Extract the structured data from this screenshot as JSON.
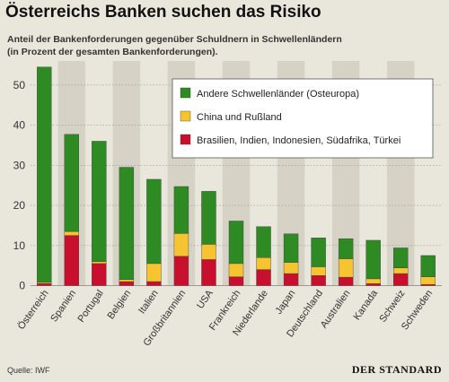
{
  "header": {
    "title": "Österreichs Banken suchen das Risiko",
    "subtitle_line1": "Anteil der Bankenforderungen gegenüber Schuldnern in Schwellenländern",
    "subtitle_line2": "(in Prozent der gesamten Bankenforderungen)."
  },
  "footer": {
    "source": "Quelle: IWF",
    "brand": "DER STANDARD"
  },
  "colors": {
    "background": "#e9e7dc",
    "stripe": "#d6d3c6",
    "green": "#2e8b23",
    "yellow": "#f7c431",
    "red": "#c8102e",
    "grid": "#9a988f"
  },
  "chart_data": {
    "type": "bar",
    "stacked": true,
    "categories": [
      "Österreich",
      "Spanien",
      "Portugal",
      "Belgien",
      "Italien",
      "Großbritannien",
      "USA",
      "Frankreich",
      "Niederlande",
      "Japan",
      "Deutschland",
      "Australien",
      "Kanada",
      "Schweiz",
      "Schweden"
    ],
    "series": [
      {
        "name": "Brasilien, Indien, Indonesien, Südafrika, Türkei",
        "color": "#c8102e",
        "values": [
          0.5,
          12.5,
          5.5,
          1,
          1,
          7.3,
          6.5,
          2.2,
          4,
          3,
          2.5,
          2.1,
          0.5,
          3,
          0.3
        ]
      },
      {
        "name": "China und Rußland",
        "color": "#f7c431",
        "values": [
          0.3,
          1,
          0.5,
          0.5,
          4.5,
          5.7,
          3.8,
          3.3,
          3,
          2.8,
          2.2,
          4.6,
          1.2,
          1.4,
          1.9
        ]
      },
      {
        "name": "Andere Schwellenländer (Osteuropa)",
        "color": "#2e8b23",
        "values": [
          53.7,
          24.2,
          30,
          28,
          21,
          11.7,
          13.2,
          10.6,
          7.7,
          7.1,
          7.2,
          5,
          9.6,
          5,
          5.3
        ]
      }
    ],
    "legend_order": [
      "Andere Schwellenländer (Osteuropa)",
      "China und Rußland",
      "Brasilien, Indien, Indonesien, Südafrika, Türkei"
    ],
    "legend_placement": "top-right",
    "yticks": [
      0,
      10,
      20,
      30,
      40,
      50
    ],
    "ylim": [
      0,
      56
    ],
    "grid": true,
    "xlabel": "",
    "ylabel": ""
  }
}
